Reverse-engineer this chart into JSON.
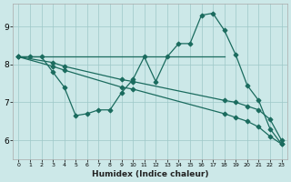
{
  "xlabel": "Humidex (Indice chaleur)",
  "bg_color": "#cce8e8",
  "line_color": "#1a6b5e",
  "grid_color": "#9ec8c8",
  "xlim": [
    -0.5,
    23.5
  ],
  "ylim": [
    5.5,
    9.6
  ],
  "yticks": [
    6,
    7,
    8,
    9
  ],
  "xticks": [
    0,
    1,
    2,
    3,
    4,
    5,
    6,
    7,
    8,
    9,
    10,
    11,
    12,
    13,
    14,
    15,
    16,
    17,
    18,
    19,
    20,
    21,
    22,
    23
  ],
  "line_flat": {
    "x": [
      0,
      1,
      2,
      18
    ],
    "y": [
      8.2,
      8.2,
      8.2,
      8.2
    ]
  },
  "line_curve": {
    "x": [
      0,
      1,
      2,
      3,
      4,
      5,
      6,
      7,
      8,
      9,
      10,
      11,
      12,
      13,
      14,
      15,
      16,
      17,
      18,
      19,
      20,
      21,
      22,
      23
    ],
    "y": [
      8.2,
      8.2,
      8.2,
      7.8,
      7.4,
      6.65,
      6.7,
      6.8,
      6.8,
      7.25,
      7.6,
      8.2,
      7.55,
      8.2,
      8.55,
      8.55,
      9.3,
      9.35,
      8.9,
      8.25,
      7.45,
      7.05,
      6.3,
      5.9
    ]
  },
  "line_diag1": {
    "x": [
      0,
      3,
      4,
      9,
      10,
      18,
      19,
      20,
      21,
      22,
      23
    ],
    "y": [
      8.2,
      8.05,
      7.95,
      7.6,
      7.55,
      7.05,
      7.0,
      6.9,
      6.8,
      6.55,
      6.0
    ]
  },
  "line_diag2": {
    "x": [
      0,
      3,
      4,
      9,
      10,
      18,
      19,
      20,
      21,
      22,
      23
    ],
    "y": [
      8.2,
      7.95,
      7.85,
      7.4,
      7.35,
      6.7,
      6.6,
      6.5,
      6.35,
      6.1,
      5.9
    ]
  }
}
